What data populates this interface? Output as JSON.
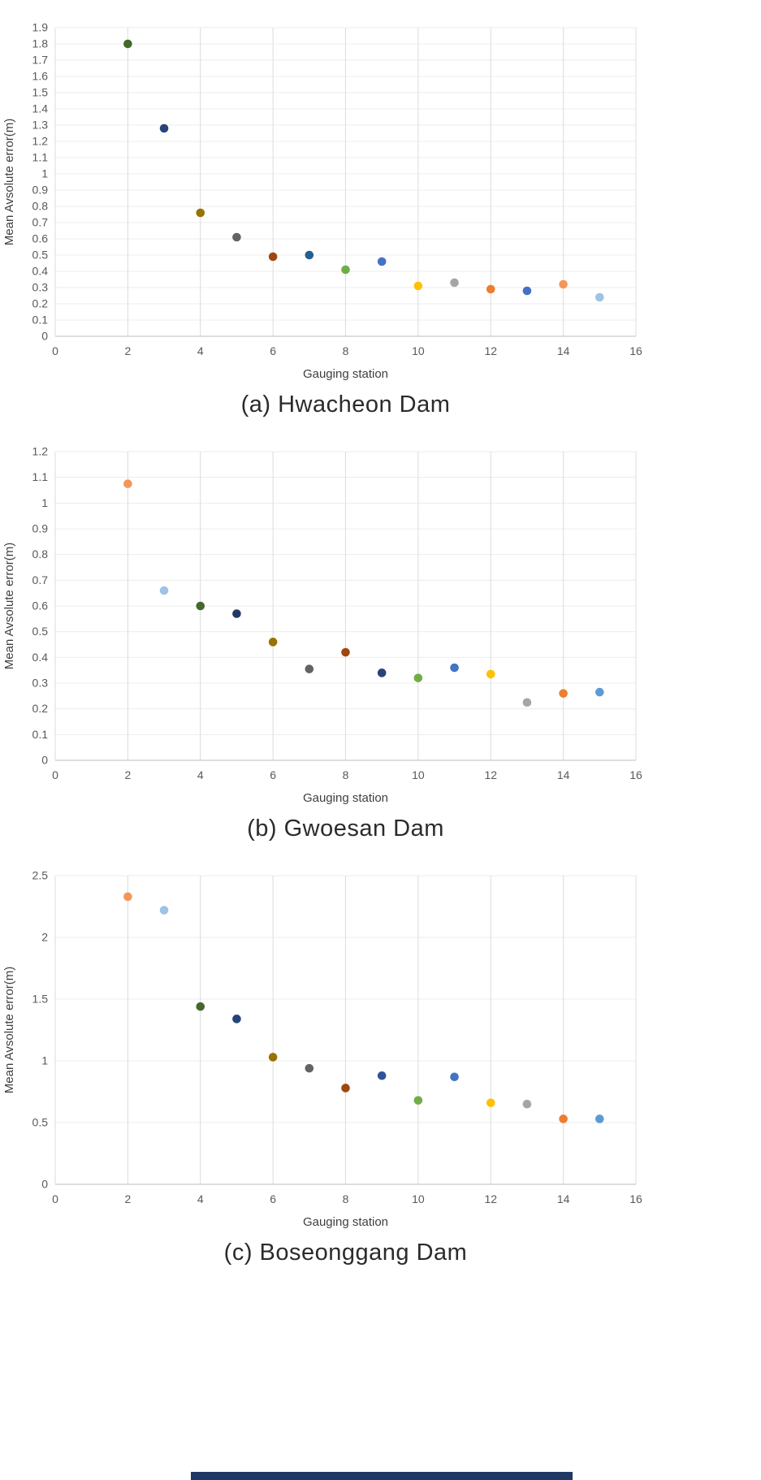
{
  "page": {
    "background": "#ffffff",
    "cropped_bar_color": "#1F3864"
  },
  "chart_data": [
    {
      "id": "a",
      "type": "scatter",
      "caption": "(a) Hwacheon Dam",
      "xlabel": "Gauging station",
      "ylabel": "Mean Avsolute error(m)",
      "xlim": [
        0,
        16
      ],
      "ylim": [
        0,
        1.9
      ],
      "grid": true,
      "legend": "none",
      "xticks": {
        "values": [
          0,
          2,
          4,
          6,
          8,
          10,
          12,
          14,
          16
        ],
        "labels": [
          "0",
          "2",
          "4",
          "6",
          "8",
          "10",
          "12",
          "14",
          "16"
        ]
      },
      "yticks": {
        "values": [
          0,
          0.1,
          0.2,
          0.3,
          0.4,
          0.5,
          0.6,
          0.7,
          0.8,
          0.9,
          1.0,
          1.1,
          1.2,
          1.3,
          1.4,
          1.5,
          1.6,
          1.7,
          1.8,
          1.9
        ],
        "labels": [
          "0",
          "0.1",
          "0.2",
          "0.3",
          "0.4",
          "0.5",
          "0.6",
          "0.7",
          "0.8",
          "0.9",
          "1",
          "1.1",
          "1.2",
          "1.3",
          "1.4",
          "1.5",
          "1.6",
          "1.7",
          "1.8",
          "1.9"
        ]
      },
      "points": [
        {
          "x": 2,
          "y": 1.8,
          "color": "#43682B"
        },
        {
          "x": 3,
          "y": 1.28,
          "color": "#264478"
        },
        {
          "x": 4,
          "y": 0.76,
          "color": "#997300"
        },
        {
          "x": 5,
          "y": 0.61,
          "color": "#636363"
        },
        {
          "x": 6,
          "y": 0.49,
          "color": "#9E480E"
        },
        {
          "x": 7,
          "y": 0.5,
          "color": "#255E91"
        },
        {
          "x": 8,
          "y": 0.41,
          "color": "#70AD47"
        },
        {
          "x": 9,
          "y": 0.46,
          "color": "#4472C4"
        },
        {
          "x": 10,
          "y": 0.31,
          "color": "#FFC000"
        },
        {
          "x": 11,
          "y": 0.33,
          "color": "#A5A5A5"
        },
        {
          "x": 12,
          "y": 0.29,
          "color": "#ED7D31"
        },
        {
          "x": 13,
          "y": 0.28,
          "color": "#4472C4"
        },
        {
          "x": 14,
          "y": 0.32,
          "color": "#F1975A"
        },
        {
          "x": 15,
          "y": 0.24,
          "color": "#9DC3E6"
        }
      ]
    },
    {
      "id": "b",
      "type": "scatter",
      "caption": "(b) Gwoesan Dam",
      "xlabel": "Gauging station",
      "ylabel": "Mean Avsolute error(m)",
      "xlim": [
        0,
        16
      ],
      "ylim": [
        0,
        1.2
      ],
      "grid": true,
      "legend": "none",
      "xticks": {
        "values": [
          0,
          2,
          4,
          6,
          8,
          10,
          12,
          14,
          16
        ],
        "labels": [
          "0",
          "2",
          "4",
          "6",
          "8",
          "10",
          "12",
          "14",
          "16"
        ]
      },
      "yticks": {
        "values": [
          0,
          0.1,
          0.2,
          0.3,
          0.4,
          0.5,
          0.6,
          0.7,
          0.8,
          0.9,
          1.0,
          1.1,
          1.2
        ],
        "labels": [
          "0",
          "0.1",
          "0.2",
          "0.3",
          "0.4",
          "0.5",
          "0.6",
          "0.7",
          "0.8",
          "0.9",
          "1",
          "1.1",
          "1.2"
        ]
      },
      "points": [
        {
          "x": 2,
          "y": 1.075,
          "color": "#F1975A"
        },
        {
          "x": 3,
          "y": 0.66,
          "color": "#9DC3E6"
        },
        {
          "x": 4,
          "y": 0.6,
          "color": "#43682B"
        },
        {
          "x": 5,
          "y": 0.57,
          "color": "#203864"
        },
        {
          "x": 6,
          "y": 0.46,
          "color": "#997300"
        },
        {
          "x": 7,
          "y": 0.355,
          "color": "#636363"
        },
        {
          "x": 8,
          "y": 0.42,
          "color": "#9E480E"
        },
        {
          "x": 9,
          "y": 0.34,
          "color": "#264478"
        },
        {
          "x": 10,
          "y": 0.32,
          "color": "#70AD47"
        },
        {
          "x": 11,
          "y": 0.36,
          "color": "#4472C4"
        },
        {
          "x": 12,
          "y": 0.335,
          "color": "#FFC000"
        },
        {
          "x": 13,
          "y": 0.225,
          "color": "#A5A5A5"
        },
        {
          "x": 14,
          "y": 0.26,
          "color": "#ED7D31"
        },
        {
          "x": 15,
          "y": 0.265,
          "color": "#5B9BD5"
        }
      ]
    },
    {
      "id": "c",
      "type": "scatter",
      "caption": "(c) Boseonggang Dam",
      "xlabel": "Gauging station",
      "ylabel": "Mean Avsolute error(m)",
      "xlim": [
        0,
        16
      ],
      "ylim": [
        0,
        2.5
      ],
      "grid": true,
      "legend": "none",
      "xticks": {
        "values": [
          0,
          2,
          4,
          6,
          8,
          10,
          12,
          14,
          16
        ],
        "labels": [
          "0",
          "2",
          "4",
          "6",
          "8",
          "10",
          "12",
          "14",
          "16"
        ]
      },
      "yticks": {
        "values": [
          0,
          0.5,
          1.0,
          1.5,
          2.0,
          2.5
        ],
        "labels": [
          "0",
          "0.5",
          "1",
          "1.5",
          "2",
          "2.5"
        ]
      },
      "points": [
        {
          "x": 2,
          "y": 2.33,
          "color": "#F1975A"
        },
        {
          "x": 3,
          "y": 2.22,
          "color": "#9DC3E6"
        },
        {
          "x": 4,
          "y": 1.44,
          "color": "#43682B"
        },
        {
          "x": 5,
          "y": 1.34,
          "color": "#264478"
        },
        {
          "x": 6,
          "y": 1.03,
          "color": "#997300"
        },
        {
          "x": 7,
          "y": 0.94,
          "color": "#636363"
        },
        {
          "x": 8,
          "y": 0.78,
          "color": "#9E480E"
        },
        {
          "x": 9,
          "y": 0.88,
          "color": "#2F5597"
        },
        {
          "x": 10,
          "y": 0.68,
          "color": "#70AD47"
        },
        {
          "x": 11,
          "y": 0.87,
          "color": "#4472C4"
        },
        {
          "x": 12,
          "y": 0.66,
          "color": "#FFC000"
        },
        {
          "x": 13,
          "y": 0.65,
          "color": "#A5A5A5"
        },
        {
          "x": 14,
          "y": 0.53,
          "color": "#ED7D31"
        },
        {
          "x": 15,
          "y": 0.53,
          "color": "#5B9BD5"
        }
      ]
    }
  ]
}
